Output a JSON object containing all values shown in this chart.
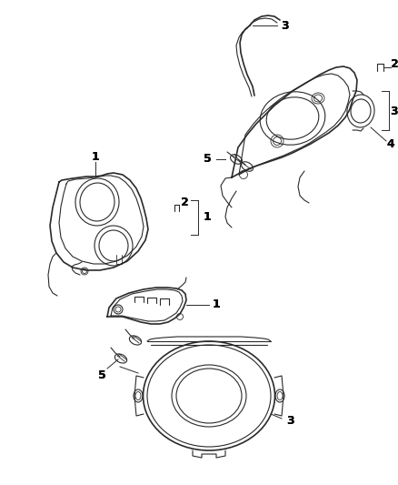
{
  "bg_color": "#ffffff",
  "line_color": "#2a2a2a",
  "label_color": "#000000",
  "figsize": [
    4.38,
    5.33
  ],
  "dpi": 100,
  "xlim": [
    0,
    438
  ],
  "ylim": [
    0,
    533
  ]
}
